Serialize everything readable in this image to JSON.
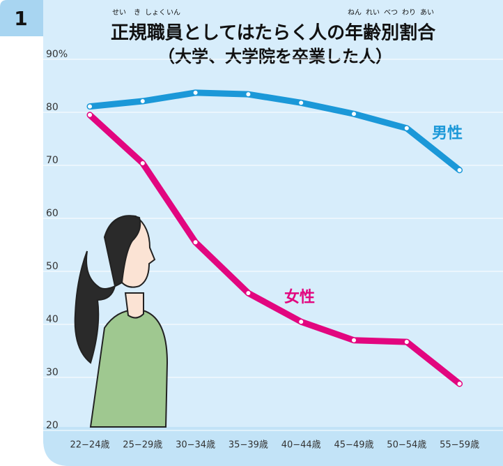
{
  "badge": "1",
  "chart_data": {
    "type": "line",
    "title": "正規職員としてはたらく人の年齢別割合",
    "subtitle": "（大学、大学院を卒業した人）",
    "furigana": [
      "せい",
      "き",
      "しょく",
      "いん",
      "ねん",
      "れい",
      "べつ",
      "わり",
      "あい"
    ],
    "categories": [
      "22−24歳",
      "25−29歳",
      "30−34歳",
      "35−39歳",
      "40−44歳",
      "45−49歳",
      "50−54歳",
      "55−59歳"
    ],
    "series": [
      {
        "name": "男性",
        "color": "#1b98d8",
        "values": [
          81.1,
          82.1,
          83.7,
          83.4,
          81.8,
          79.7,
          77.0,
          69.1
        ]
      },
      {
        "name": "女性",
        "color": "#e2067f",
        "values": [
          79.5,
          70.4,
          55.5,
          45.9,
          40.5,
          37.0,
          36.7,
          28.8
        ]
      }
    ],
    "ylim": [
      20,
      90
    ],
    "yticks": [
      20,
      30,
      40,
      50,
      60,
      70,
      80,
      {
        "value": 90,
        "label": "90%"
      }
    ],
    "grid": true
  }
}
